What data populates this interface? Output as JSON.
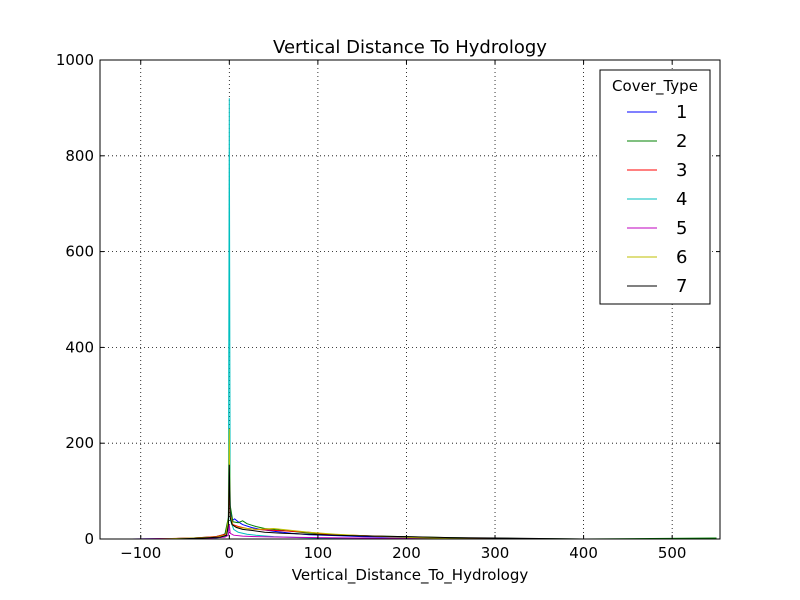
{
  "chart_data": {
    "type": "line",
    "title": "Vertical Distance To Hydrology",
    "xlabel": "Vertical_Distance_To_Hydrology",
    "ylabel": "",
    "xlim": [
      -146,
      554
    ],
    "ylim": [
      0,
      1000
    ],
    "x_ticks": [
      -100,
      0,
      100,
      200,
      300,
      400,
      500
    ],
    "y_ticks": [
      0,
      200,
      400,
      600,
      800,
      1000
    ],
    "x_tick_labels": [
      "−100",
      "0",
      "100",
      "200",
      "300",
      "400",
      "500"
    ],
    "y_tick_labels": [
      "0",
      "200",
      "400",
      "600",
      "800",
      "1000"
    ],
    "grid": true,
    "legend": {
      "title": "Cover_Type",
      "placement": "top-right"
    },
    "series": [
      {
        "name": "1",
        "color": "#0000ff",
        "points": [
          [
            -110,
            0
          ],
          [
            -60,
            1
          ],
          [
            -25,
            3
          ],
          [
            -10,
            6
          ],
          [
            -4,
            12
          ],
          [
            -1,
            40
          ],
          [
            0,
            150
          ],
          [
            1,
            60
          ],
          [
            3,
            38
          ],
          [
            6,
            42
          ],
          [
            10,
            36
          ],
          [
            15,
            30
          ],
          [
            25,
            24
          ],
          [
            35,
            20
          ],
          [
            50,
            16
          ],
          [
            70,
            12
          ],
          [
            90,
            9
          ],
          [
            120,
            7
          ],
          [
            150,
            5
          ],
          [
            200,
            3
          ],
          [
            250,
            2
          ],
          [
            300,
            1
          ],
          [
            360,
            0
          ]
        ]
      },
      {
        "name": "2",
        "color": "#008000",
        "points": [
          [
            -80,
            0
          ],
          [
            -40,
            2
          ],
          [
            -15,
            5
          ],
          [
            -5,
            10
          ],
          [
            -1,
            45
          ],
          [
            0,
            220
          ],
          [
            1,
            70
          ],
          [
            4,
            36
          ],
          [
            10,
            34
          ],
          [
            15,
            38
          ],
          [
            20,
            32
          ],
          [
            30,
            26
          ],
          [
            40,
            22
          ],
          [
            60,
            18
          ],
          [
            80,
            14
          ],
          [
            100,
            11
          ],
          [
            130,
            8
          ],
          [
            170,
            6
          ],
          [
            220,
            4
          ],
          [
            270,
            2
          ],
          [
            330,
            1
          ],
          [
            400,
            0
          ],
          [
            550,
            2
          ]
        ]
      },
      {
        "name": "3",
        "color": "#ff0000",
        "points": [
          [
            -90,
            0
          ],
          [
            -40,
            2
          ],
          [
            -15,
            5
          ],
          [
            -4,
            10
          ],
          [
            -1,
            30
          ],
          [
            0,
            120
          ],
          [
            1,
            50
          ],
          [
            4,
            30
          ],
          [
            10,
            26
          ],
          [
            20,
            22
          ],
          [
            30,
            20
          ],
          [
            50,
            18
          ],
          [
            70,
            16
          ],
          [
            90,
            14
          ],
          [
            110,
            10
          ],
          [
            140,
            8
          ],
          [
            180,
            5
          ],
          [
            230,
            3
          ],
          [
            280,
            1
          ],
          [
            330,
            0
          ]
        ]
      },
      {
        "name": "4",
        "color": "#00bfbf",
        "points": [
          [
            -40,
            0
          ],
          [
            -15,
            2
          ],
          [
            -5,
            5
          ],
          [
            -1,
            20
          ],
          [
            0,
            920
          ],
          [
            1,
            40
          ],
          [
            5,
            20
          ],
          [
            10,
            14
          ],
          [
            20,
            10
          ],
          [
            30,
            8
          ],
          [
            50,
            5
          ],
          [
            80,
            3
          ],
          [
            120,
            1
          ],
          [
            160,
            0
          ]
        ]
      },
      {
        "name": "5",
        "color": "#bf00bf",
        "points": [
          [
            -110,
            0
          ],
          [
            -60,
            1
          ],
          [
            -20,
            2
          ],
          [
            -5,
            4
          ],
          [
            -1,
            8
          ],
          [
            0,
            30
          ],
          [
            1,
            12
          ],
          [
            5,
            8
          ],
          [
            15,
            6
          ],
          [
            30,
            5
          ],
          [
            60,
            4
          ],
          [
            100,
            3
          ],
          [
            150,
            2
          ],
          [
            200,
            1
          ],
          [
            260,
            0
          ]
        ]
      },
      {
        "name": "6",
        "color": "#bfbf00",
        "points": [
          [
            -80,
            0
          ],
          [
            -40,
            2
          ],
          [
            -15,
            4
          ],
          [
            -4,
            8
          ],
          [
            -1,
            40
          ],
          [
            0,
            230
          ],
          [
            1,
            50
          ],
          [
            4,
            28
          ],
          [
            10,
            24
          ],
          [
            20,
            22
          ],
          [
            30,
            20
          ],
          [
            50,
            22
          ],
          [
            70,
            18
          ],
          [
            90,
            14
          ],
          [
            120,
            10
          ],
          [
            160,
            6
          ],
          [
            210,
            3
          ],
          [
            260,
            1
          ],
          [
            310,
            0
          ]
        ]
      },
      {
        "name": "7",
        "color": "#000000",
        "points": [
          [
            -60,
            0
          ],
          [
            -30,
            2
          ],
          [
            -10,
            4
          ],
          [
            -3,
            8
          ],
          [
            -1,
            30
          ],
          [
            0,
            155
          ],
          [
            1,
            45
          ],
          [
            3,
            30
          ],
          [
            8,
            24
          ],
          [
            15,
            20
          ],
          [
            25,
            18
          ],
          [
            40,
            14
          ],
          [
            60,
            12
          ],
          [
            90,
            10
          ],
          [
            120,
            8
          ],
          [
            160,
            6
          ],
          [
            200,
            5
          ],
          [
            250,
            3
          ],
          [
            300,
            2
          ],
          [
            350,
            1
          ],
          [
            400,
            0
          ]
        ]
      }
    ]
  }
}
